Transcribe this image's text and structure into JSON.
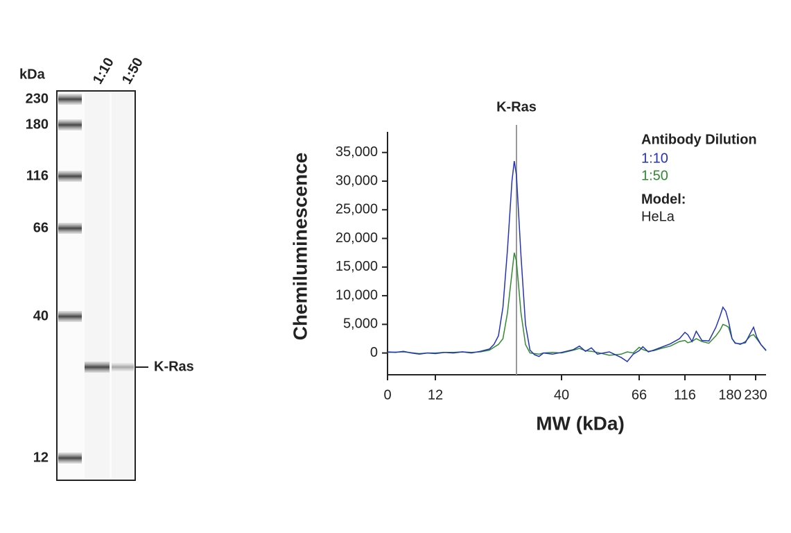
{
  "blot": {
    "unit_label": "kDa",
    "lanes": [
      "1:10",
      "1:50"
    ],
    "markers": [
      "230",
      "180",
      "116",
      "66",
      "40",
      "12"
    ],
    "band_label": "K-Ras"
  },
  "chart_data": {
    "type": "line",
    "xlabel": "MW (kDa)",
    "ylabel": "Chemiluminescence",
    "annotation": {
      "label": "K-Ras",
      "x": 30
    },
    "legend_title": "Antibody Dilution",
    "model_label": "Model:",
    "model": "HeLa",
    "legend": "top-right",
    "xlim": [
      0,
      250
    ],
    "xticks": [
      0,
      12,
      40,
      66,
      116,
      180,
      230
    ],
    "ylim": [
      -3800,
      38600
    ],
    "yticks": [
      0,
      {
        "value": 5000,
        "label": "5,000"
      },
      {
        "value": 10000,
        "label": "10,000"
      },
      {
        "value": 15000,
        "label": "15,000"
      },
      {
        "value": 20000,
        "label": "20,000"
      },
      {
        "value": 25000,
        "label": "25,000"
      },
      {
        "value": 30000,
        "label": "30,000"
      },
      {
        "value": 35000,
        "label": "35,000"
      }
    ],
    "x": [
      0,
      2,
      4,
      6,
      8,
      10,
      12,
      14,
      16,
      18,
      20,
      22,
      24,
      25,
      26,
      27,
      28,
      29,
      29.5,
      30,
      31,
      32,
      33,
      34,
      35,
      36,
      38,
      40,
      44,
      46,
      48,
      50,
      52,
      56,
      60,
      62,
      64,
      66,
      70,
      76,
      82,
      90,
      100,
      110,
      116,
      120,
      126,
      132,
      140,
      150,
      160,
      166,
      170,
      174,
      178,
      184,
      190,
      200,
      210,
      220,
      226,
      232,
      240,
      250
    ],
    "series": [
      {
        "name": "1:10",
        "color": "#2233b8",
        "values": [
          200,
          100,
          300,
          0,
          -200,
          0,
          -100,
          100,
          0,
          200,
          0,
          300,
          700,
          1500,
          3000,
          8000,
          18000,
          30000,
          33500,
          31000,
          17000,
          5000,
          500,
          -300,
          -600,
          0,
          -200,
          100,
          600,
          1200,
          300,
          900,
          -200,
          200,
          -800,
          -1500,
          -200,
          400,
          1100,
          200,
          500,
          1000,
          1600,
          2500,
          3600,
          3200,
          2000,
          3800,
          2200,
          2100,
          4500,
          6500,
          8000,
          7300,
          5500,
          2500,
          1700,
          1600,
          1800,
          3500,
          4500,
          2800,
          1500,
          400
        ]
      },
      {
        "name": "1:50",
        "color": "#2e8b2e",
        "values": [
          100,
          150,
          200,
          50,
          -100,
          0,
          0,
          100,
          100,
          200,
          100,
          200,
          500,
          1000,
          1500,
          2500,
          7000,
          14000,
          17500,
          16000,
          7000,
          1500,
          0,
          -100,
          -200,
          0,
          100,
          0,
          500,
          800,
          400,
          300,
          100,
          -400,
          -200,
          200,
          0,
          1000,
          600,
          300,
          400,
          800,
          1200,
          2000,
          2200,
          1800,
          2000,
          2500,
          2000,
          1700,
          3000,
          4000,
          5000,
          4800,
          4500,
          2500,
          1800,
          1500,
          2000,
          3000,
          3200,
          2500,
          1500,
          500
        ]
      }
    ]
  }
}
